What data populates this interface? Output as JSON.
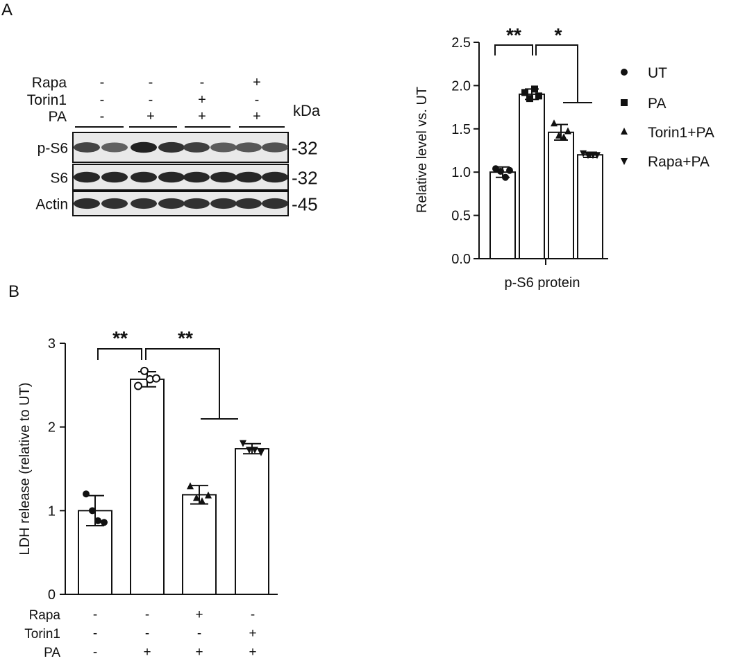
{
  "panels": {
    "a_label": "A",
    "b_label": "B"
  },
  "blot": {
    "treatment_rows": [
      {
        "name": "Rapa",
        "signs": [
          "-",
          "-",
          "-",
          "+"
        ]
      },
      {
        "name": "Torin1",
        "signs": [
          "-",
          "-",
          "+",
          "-"
        ]
      },
      {
        "name": "PA",
        "signs": [
          "-",
          "+",
          "+",
          "+"
        ]
      }
    ],
    "kda_label": "kDa",
    "bands": [
      {
        "name": "p-S6",
        "marker": "-32"
      },
      {
        "name": "S6",
        "marker": "-32"
      },
      {
        "name": "Actin",
        "marker": "-45"
      }
    ],
    "band_intensity": {
      "p-S6": [
        0.78,
        0.66,
        0.92,
        0.86,
        0.8,
        0.68,
        0.7,
        0.72
      ],
      "S6": [
        0.9,
        0.9,
        0.9,
        0.9,
        0.9,
        0.9,
        0.9,
        0.9
      ],
      "Actin": [
        0.88,
        0.86,
        0.86,
        0.86,
        0.86,
        0.86,
        0.86,
        0.86
      ]
    }
  },
  "chart_data": [
    {
      "type": "bar",
      "panel": "A",
      "ylabel": "Relative level vs. UT",
      "xlabel": "p-S6 protein",
      "ylim": [
        0,
        2.5
      ],
      "yticks": [
        "0.0",
        "0.5",
        "1.0",
        "1.5",
        "2.0",
        "2.5"
      ],
      "series": [
        {
          "name": "UT",
          "marker": "circle",
          "value": 1.0,
          "error": 0.06,
          "points": [
            1.04,
            1.01,
            0.94,
            1.02
          ]
        },
        {
          "name": "PA",
          "marker": "square",
          "value": 1.9,
          "error": 0.06,
          "points": [
            1.92,
            1.85,
            1.96,
            1.88
          ]
        },
        {
          "name": "Torin1+PA",
          "marker": "triangle-up",
          "value": 1.46,
          "error": 0.09,
          "points": [
            1.56,
            1.42,
            1.4,
            1.47
          ]
        },
        {
          "name": "Rapa+PA",
          "marker": "triangle-down",
          "value": 1.2,
          "error": 0.03,
          "points": [
            1.22,
            1.2,
            1.2,
            1.2
          ]
        }
      ],
      "significance": [
        "**",
        "*"
      ],
      "legend": "right"
    },
    {
      "type": "bar",
      "panel": "B",
      "ylabel": "LDH release (relative to UT)",
      "ylim": [
        0,
        3
      ],
      "yticks": [
        "0",
        "1",
        "2",
        "3"
      ],
      "values": [
        1.0,
        2.57,
        1.19,
        1.74
      ],
      "errors": [
        0.18,
        0.09,
        0.11,
        0.06
      ],
      "points": [
        [
          1.2,
          1.0,
          0.88,
          0.86
        ],
        [
          2.49,
          2.67,
          2.57,
          2.58
        ],
        [
          1.29,
          1.15,
          1.11,
          1.18
        ],
        [
          1.81,
          1.73,
          1.73,
          1.7
        ]
      ],
      "markers": [
        "circle-filled",
        "circle-open",
        "triangle-up",
        "triangle-down"
      ],
      "significance": [
        "**",
        "**"
      ],
      "treatment_rows": [
        {
          "name": "Rapa",
          "signs": [
            "-",
            "-",
            "+",
            "-"
          ]
        },
        {
          "name": "Torin1",
          "signs": [
            "-",
            "-",
            "-",
            "+"
          ]
        },
        {
          "name": "PA",
          "signs": [
            "-",
            "+",
            "+",
            "+"
          ]
        }
      ]
    }
  ]
}
